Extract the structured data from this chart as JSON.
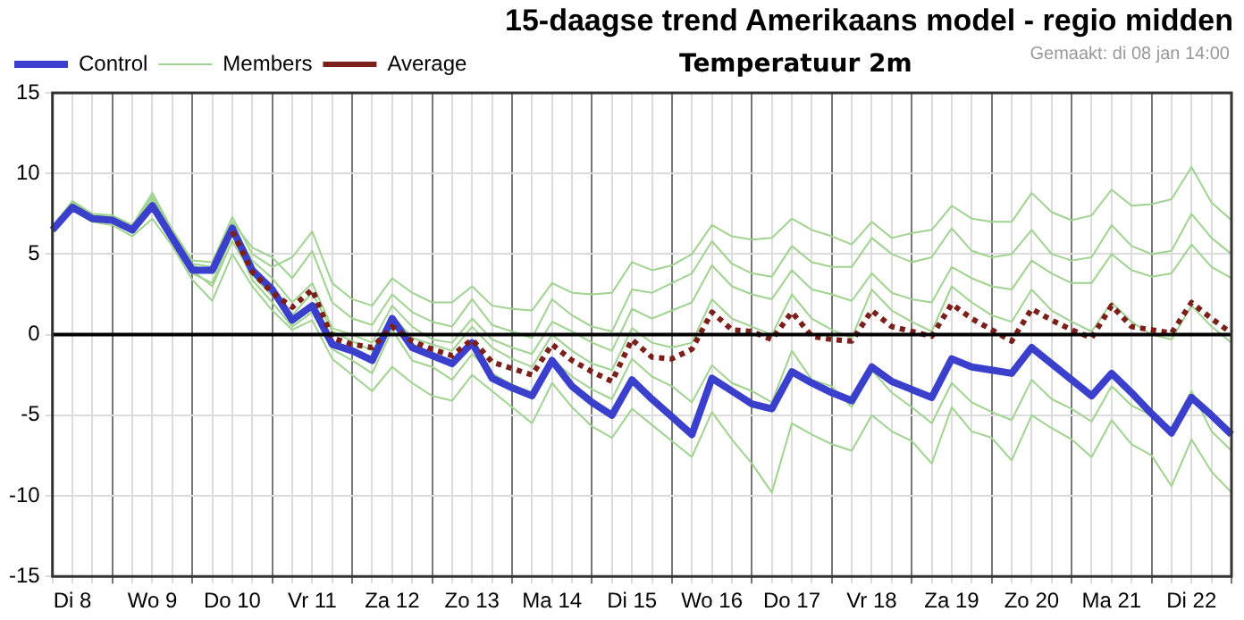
{
  "chart_data": {
    "type": "line",
    "title": "15-daagse trend Amerikaans model - regio midden",
    "subtitle": "Temperatuur 2m",
    "annotations": [
      "Gemaakt: di 08 jan 14:00"
    ],
    "categories": [
      null,
      "Di 8",
      null,
      null,
      null,
      "Wo 9",
      null,
      null,
      null,
      "Do 10",
      null,
      null,
      null,
      "Vr 11",
      null,
      null,
      null,
      "Za 12",
      null,
      null,
      null,
      "Zo 13",
      null,
      null,
      null,
      "Ma 14",
      null,
      null,
      null,
      "Di 15",
      null,
      null,
      null,
      "Wo 16",
      null,
      null,
      null,
      "Do 17",
      null,
      null,
      null,
      "Vr 18",
      null,
      null,
      null,
      "Za 19",
      null,
      null,
      null,
      "Zo 20",
      null,
      null,
      null,
      "Ma 21",
      null,
      null,
      null,
      "Di 22",
      null,
      null
    ],
    "ylim": [
      -15,
      15
    ],
    "yticks": [
      -15,
      -10,
      -5,
      0,
      5,
      10,
      15
    ],
    "grid": true,
    "legend": "top left",
    "marker": "none",
    "ref_lines": [
      {
        "axis": "y",
        "value": 0,
        "color": "#000000"
      }
    ],
    "series": [
      {
        "name": "Control",
        "color": "#3a3fcc",
        "values": [
          6.5,
          7.9,
          7.2,
          7.1,
          6.5,
          8.0,
          6.0,
          4.0,
          4.0,
          6.6,
          4.0,
          2.8,
          0.9,
          1.8,
          -0.6,
          -1.0,
          -1.6,
          1.0,
          -0.8,
          -1.3,
          -1.8,
          -0.5,
          -2.7,
          -3.3,
          -3.8,
          -1.6,
          -3.2,
          -4.2,
          -5.0,
          -2.8,
          -4.0,
          -5.1,
          -6.2,
          -2.7,
          -3.5,
          -4.3,
          -4.6,
          -2.3,
          -3.0,
          -3.6,
          -4.1,
          -2.0,
          -2.9,
          -3.4,
          -3.9,
          -1.5,
          -2.0,
          -2.2,
          -2.4,
          -0.8,
          -1.8,
          -2.8,
          -3.8,
          -2.4,
          -3.6,
          -4.9,
          -6.1,
          -3.9,
          -5.0,
          -6.2
        ]
      },
      {
        "name": "Members",
        "color": "#9fd38f",
        "values": [
          6.7,
          8.3,
          7.5,
          7.4,
          6.8,
          8.8,
          6.5,
          4.6,
          4.5,
          7.3,
          5.0,
          4.2,
          4.8,
          6.4,
          3.2,
          2.2,
          1.8,
          3.5,
          2.6,
          2.0,
          2.0,
          3.0,
          1.8,
          1.6,
          1.5,
          3.2,
          2.6,
          2.5,
          2.6,
          4.5,
          4.0,
          4.3,
          5.0,
          6.8,
          6.1,
          5.9,
          6.0,
          7.2,
          6.5,
          6.1,
          5.6,
          7.0,
          6.0,
          6.3,
          6.5,
          8.0,
          7.2,
          7.0,
          7.0,
          8.8,
          7.6,
          7.1,
          7.4,
          9.0,
          8.0,
          8.1,
          8.4,
          10.4,
          8.2,
          7.1
        ]
      },
      {
        "color": "#9fd38f",
        "values": [
          6.3,
          7.7,
          7.0,
          6.8,
          6.1,
          7.2,
          5.5,
          3.4,
          2.1,
          5.0,
          3.0,
          1.5,
          0.3,
          0.9,
          -1.5,
          -2.5,
          -3.5,
          -2.0,
          -3.0,
          -3.8,
          -4.1,
          -2.5,
          -3.5,
          -4.5,
          -5.5,
          -3.0,
          -4.5,
          -5.7,
          -6.4,
          -4.6,
          -5.6,
          -6.6,
          -7.6,
          -4.8,
          -6.5,
          -8.0,
          -9.8,
          -5.5,
          -6.2,
          -6.8,
          -7.2,
          -5.0,
          -6.0,
          -6.6,
          -8.0,
          -4.5,
          -6.0,
          -6.4,
          -7.8,
          -5.0,
          -5.8,
          -6.5,
          -7.6,
          -5.3,
          -6.8,
          -7.5,
          -9.4,
          -6.5,
          -8.5,
          -9.8
        ]
      },
      {
        "color": "#9fd38f",
        "values": [
          6.6,
          8.1,
          7.3,
          7.2,
          6.6,
          8.3,
          6.2,
          4.3,
          3.8,
          6.8,
          4.6,
          3.5,
          2.0,
          3.2,
          0.4,
          0.0,
          -0.5,
          1.8,
          0.5,
          -0.3,
          -0.5,
          1.0,
          -0.3,
          -0.8,
          -1.2,
          0.8,
          0.2,
          -0.5,
          -1.0,
          1.6,
          1.0,
          1.5,
          2.0,
          4.3,
          3.0,
          2.5,
          2.2,
          4.0,
          2.8,
          2.5,
          2.1,
          3.8,
          2.6,
          2.2,
          2.0,
          4.2,
          3.5,
          3.0,
          2.8,
          4.6,
          3.8,
          3.2,
          3.2,
          5.0,
          4.0,
          3.6,
          3.8,
          5.6,
          4.2,
          3.5
        ]
      },
      {
        "color": "#9fd38f",
        "values": [
          6.4,
          7.8,
          7.1,
          7.0,
          6.3,
          7.9,
          5.8,
          3.8,
          3.2,
          6.2,
          3.4,
          2.0,
          0.5,
          1.4,
          -0.9,
          -1.6,
          -2.4,
          0.3,
          -1.6,
          -2.0,
          -2.8,
          -1.2,
          -2.4,
          -3.1,
          -3.6,
          -1.5,
          -2.6,
          -3.4,
          -4.0,
          -1.5,
          -2.6,
          -3.2,
          -4.2,
          -1.9,
          -3.0,
          -3.5,
          -4.2,
          -1.0,
          -2.8,
          -3.2,
          -4.5,
          -2.2,
          -3.6,
          -4.5,
          -5.5,
          -3.0,
          -4.2,
          -4.8,
          -5.3,
          -2.8,
          -4.0,
          -4.6,
          -5.4,
          -3.2,
          -4.4,
          -5.0,
          -5.8,
          -3.5,
          -6.0,
          -7.2
        ]
      },
      {
        "color": "#9fd38f",
        "values": [
          6.5,
          8.0,
          7.3,
          7.2,
          6.7,
          8.5,
          6.3,
          4.0,
          3.0,
          5.8,
          3.7,
          2.4,
          1.2,
          2.6,
          0.2,
          -0.4,
          -1.0,
          1.2,
          -0.2,
          -0.6,
          -1.0,
          0.5,
          -0.8,
          -1.5,
          -2.0,
          0.0,
          -1.0,
          -1.8,
          -2.2,
          0.4,
          -0.5,
          -0.8,
          -0.5,
          2.2,
          1.0,
          0.5,
          0.0,
          2.5,
          1.0,
          0.3,
          -0.2,
          2.8,
          1.5,
          0.8,
          0.2,
          3.0,
          2.0,
          1.2,
          0.8,
          2.8,
          1.5,
          0.8,
          0.2,
          2.0,
          0.8,
          0.0,
          -0.3,
          1.8,
          0.5,
          -0.5
        ]
      },
      {
        "color": "#9fd38f",
        "values": [
          6.5,
          8.2,
          7.4,
          7.3,
          6.6,
          8.6,
          6.4,
          4.4,
          4.2,
          7.0,
          5.4,
          4.8,
          3.5,
          5.2,
          2.0,
          1.0,
          0.6,
          2.5,
          1.4,
          0.8,
          0.5,
          2.2,
          0.6,
          0.2,
          -0.2,
          2.2,
          1.2,
          0.5,
          0.2,
          2.8,
          2.6,
          3.2,
          3.8,
          5.8,
          4.4,
          3.8,
          3.6,
          5.5,
          4.5,
          4.2,
          4.2,
          6.0,
          5.0,
          4.5,
          4.8,
          6.6,
          5.2,
          4.8,
          5.0,
          6.5,
          5.0,
          4.6,
          4.8,
          6.8,
          5.5,
          5.0,
          5.2,
          7.5,
          6.0,
          5.0
        ]
      },
      {
        "name": "Average",
        "color": "#7a1f1a",
        "line_style": "dotted",
        "values": [
          null,
          null,
          null,
          null,
          null,
          null,
          null,
          null,
          null,
          6.4,
          3.9,
          2.6,
          1.7,
          2.8,
          -0.2,
          -0.6,
          -0.8,
          0.5,
          -0.4,
          -0.9,
          -1.3,
          -0.3,
          -1.7,
          -2.1,
          -2.5,
          -0.6,
          -1.6,
          -2.3,
          -2.9,
          -0.3,
          -1.4,
          -1.5,
          -0.9,
          1.4,
          0.3,
          0.2,
          -0.3,
          1.4,
          -0.1,
          -0.3,
          -0.4,
          1.5,
          0.5,
          0.2,
          -0.1,
          1.9,
          1.0,
          0.3,
          -0.4,
          1.6,
          0.9,
          0.3,
          -0.2,
          1.8,
          0.5,
          0.3,
          0.1,
          2.0,
          1.0,
          0.1
        ]
      }
    ]
  }
}
